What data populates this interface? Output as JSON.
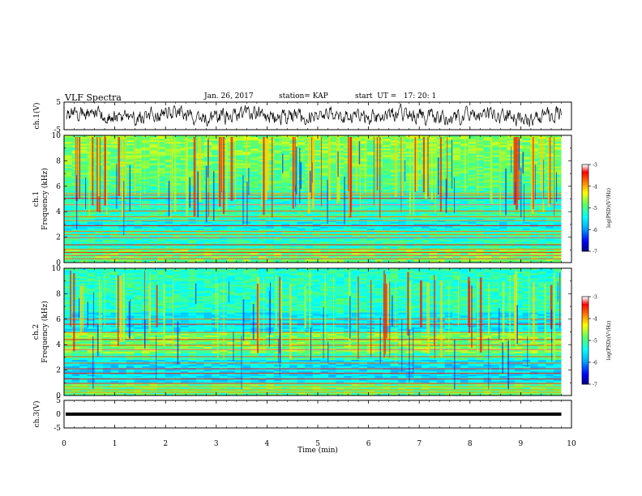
{
  "header": {
    "title": "VLF Spectra",
    "date": "Jan. 26, 2017",
    "station": "station= KAP",
    "start": "start  UT =   17: 20: 1"
  },
  "chart_data": [
    {
      "type": "line",
      "panel": "ch1-waveform",
      "ylabel": "ch.1(V)",
      "xlim": [
        0,
        10
      ],
      "ylim": [
        -5,
        5
      ],
      "yticks": [
        "5",
        "-5"
      ],
      "series_color": "#000000"
    },
    {
      "type": "heatmap",
      "panel": "ch1-spectrogram",
      "ylabel_line1": "ch.1",
      "ylabel_line2": "Frequency (kHz)",
      "xlim": [
        0,
        10
      ],
      "ylim": [
        0,
        10
      ],
      "yticks": [
        "0",
        "2",
        "4",
        "6",
        "8",
        "10"
      ],
      "colorbar": {
        "label": "log(PSD)(V²/Hz)",
        "range": [
          -7,
          -3
        ],
        "ticks": [
          "-3",
          "-4",
          "-5",
          "-6",
          "-7"
        ]
      }
    },
    {
      "type": "heatmap",
      "panel": "ch2-spectrogram",
      "ylabel_line1": "ch.2",
      "ylabel_line2": "Frequency (kHz)",
      "xlim": [
        0,
        10
      ],
      "ylim": [
        0,
        10
      ],
      "yticks": [
        "0",
        "2",
        "4",
        "6",
        "8",
        "10"
      ],
      "colorbar": {
        "label": "log(PSD)(V²/Hz)",
        "range": [
          -7,
          -3
        ],
        "ticks": [
          "-3",
          "-4",
          "-5",
          "-6",
          "-7"
        ]
      }
    },
    {
      "type": "line",
      "panel": "ch3-waveform",
      "ylabel": "ch.3(V)",
      "xlim": [
        0,
        10
      ],
      "ylim": [
        -5,
        5
      ],
      "yticks": [
        "5",
        "0",
        "-5"
      ],
      "constant_value": 0,
      "series_color": "#000000"
    }
  ],
  "xaxis": {
    "label": "Time (min)",
    "ticks": [
      "0",
      "1",
      "2",
      "3",
      "4",
      "5",
      "6",
      "7",
      "8",
      "9",
      "10"
    ],
    "data_end": 9.8
  },
  "colormap": [
    "#000080",
    "#0000ff",
    "#00b0ff",
    "#00ffff",
    "#60ff60",
    "#ffff00",
    "#ff8000",
    "#ff0000",
    "#ffffff"
  ]
}
